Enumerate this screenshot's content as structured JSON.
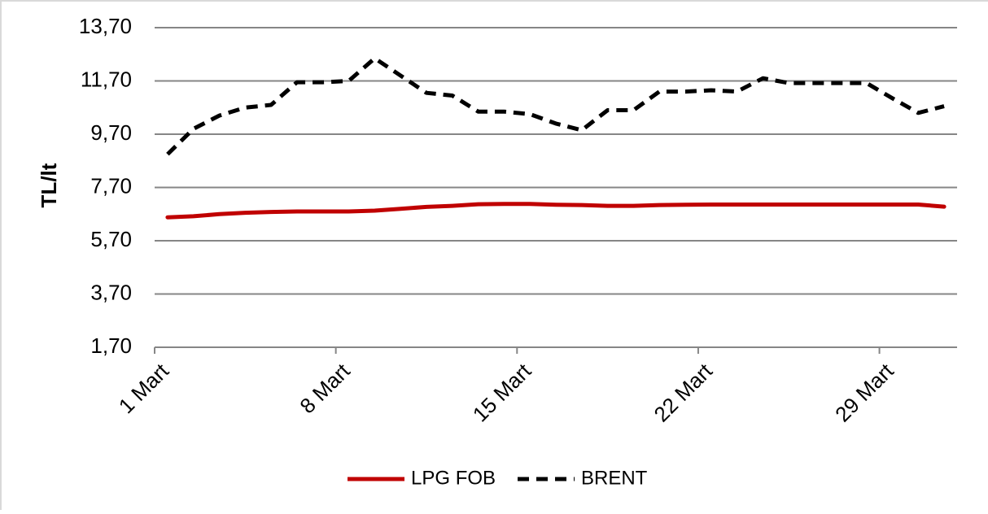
{
  "chart_data": {
    "type": "line",
    "title": "",
    "xlabel": "",
    "ylabel": "TL/lt",
    "ylim": [
      1.7,
      13.7
    ],
    "y_ticks": [
      "1,70",
      "3,70",
      "5,70",
      "7,70",
      "9,70",
      "11,70",
      "13,70"
    ],
    "x": [
      1,
      2,
      3,
      4,
      5,
      6,
      7,
      8,
      9,
      10,
      11,
      12,
      13,
      14,
      15,
      16,
      17,
      18,
      19,
      20,
      21,
      22,
      23,
      24,
      25,
      26,
      27,
      28,
      29,
      30,
      31
    ],
    "x_tick_labels": [
      "1 Mart",
      "8 Mart",
      "15 Mart",
      "22 Mart",
      "29 Mart"
    ],
    "grid": "horizontal",
    "legend_position": "bottom",
    "series": [
      {
        "name": "LPG FOB",
        "color": "#c00000",
        "dash": "solid",
        "values": [
          6.58,
          6.62,
          6.7,
          6.75,
          6.78,
          6.8,
          6.8,
          6.8,
          6.83,
          6.9,
          6.97,
          7.01,
          7.07,
          7.08,
          7.08,
          7.05,
          7.04,
          7.01,
          7.01,
          7.04,
          7.05,
          7.06,
          7.06,
          7.06,
          7.06,
          7.06,
          7.06,
          7.06,
          7.06,
          7.06,
          6.98
        ]
      },
      {
        "name": "BRENT",
        "color": "#000000",
        "dash": "dashed",
        "values": [
          8.95,
          9.9,
          10.4,
          10.7,
          10.8,
          11.65,
          11.65,
          11.7,
          12.55,
          11.9,
          11.25,
          11.15,
          10.55,
          10.55,
          10.45,
          10.1,
          9.85,
          10.6,
          10.6,
          11.3,
          11.3,
          11.35,
          11.3,
          11.8,
          11.62,
          11.62,
          11.62,
          11.62,
          11.05,
          10.5,
          10.75
        ]
      }
    ]
  }
}
